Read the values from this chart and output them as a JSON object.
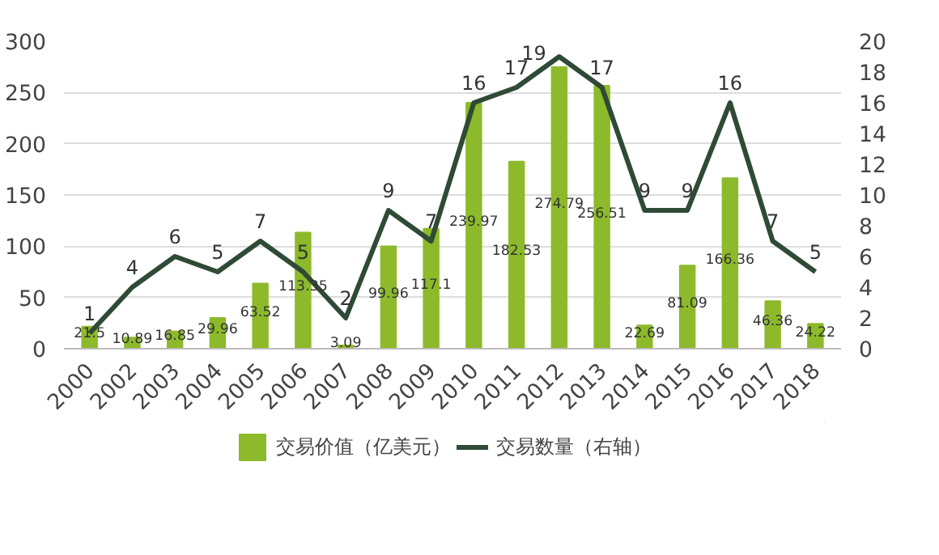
{
  "chart_data": {
    "type": "bar",
    "categories": [
      "2000",
      "2002",
      "2003",
      "2004",
      "2005",
      "2006",
      "2007",
      "2008",
      "2009",
      "2010",
      "2011",
      "2012",
      "2013",
      "2014",
      "2015",
      "2016",
      "2017",
      "2018"
    ],
    "series": [
      {
        "name": "交易价值（亿美元）",
        "color": "#8cba2a",
        "values": [
          21.5,
          10.89,
          16.85,
          29.96,
          63.52,
          113.35,
          3.09,
          99.96,
          117.1,
          239.97,
          182.53,
          274.79,
          256.51,
          22.69,
          81.09,
          166.36,
          46.36,
          24.22
        ]
      },
      {
        "name": "交易数量（右轴）",
        "type": "line",
        "axis": "y2",
        "color": "#2f4a35",
        "values": [
          1,
          4,
          6,
          5,
          7,
          5,
          2,
          9,
          7,
          16,
          17,
          19,
          17,
          9,
          9,
          16,
          7,
          5
        ]
      }
    ],
    "ylim": [
      0,
      300
    ],
    "yticks": [
      0,
      50,
      100,
      150,
      200,
      250,
      300
    ],
    "y2lim": [
      0,
      20
    ],
    "y2ticks": [
      0,
      2,
      4,
      6,
      8,
      10,
      12,
      14,
      16,
      18,
      20
    ],
    "data_labels": true,
    "grid": "y",
    "legend": "bottom",
    "marker": "none"
  }
}
